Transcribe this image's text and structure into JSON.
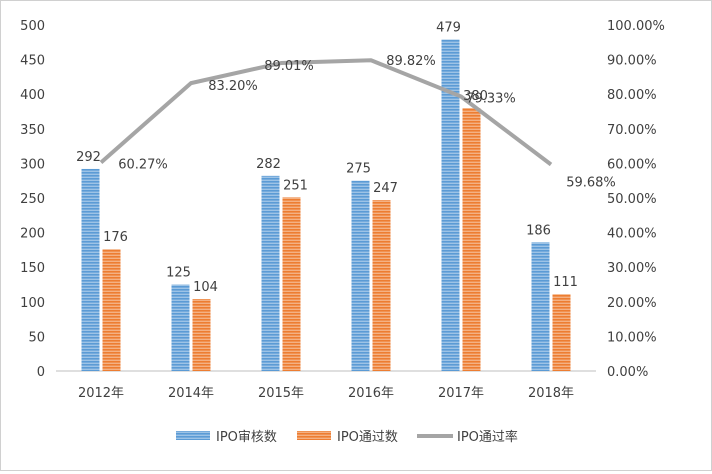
{
  "chart_data": {
    "type": "bar",
    "categories": [
      "2012年",
      "2014年",
      "2015年",
      "2016年",
      "2017年",
      "2018年"
    ],
    "series": [
      {
        "name": "IPO审核数",
        "kind": "bar",
        "axis": "left",
        "color": "#5b9bd5",
        "values": [
          292,
          125,
          282,
          275,
          479,
          186
        ]
      },
      {
        "name": "IPO通过数",
        "kind": "bar",
        "axis": "left",
        "color": "#ed7d31",
        "values": [
          176,
          104,
          251,
          247,
          380,
          111
        ]
      },
      {
        "name": "IPO通过率",
        "kind": "line",
        "axis": "right",
        "color": "#a5a5a5",
        "values": [
          60.27,
          83.2,
          89.01,
          89.82,
          79.33,
          59.68
        ],
        "labels": [
          "60.27%",
          "83.20%",
          "89.01%",
          "89.82%",
          "79.33%",
          "59.68%"
        ]
      }
    ],
    "ylim": [
      0,
      500
    ],
    "yticks": [
      "0",
      "50",
      "100",
      "150",
      "200",
      "250",
      "300",
      "350",
      "400",
      "450",
      "500"
    ],
    "y2lim": [
      0,
      100
    ],
    "y2ticks": [
      "0.00%",
      "10.00%",
      "20.00%",
      "30.00%",
      "40.00%",
      "50.00%",
      "60.00%",
      "70.00%",
      "80.00%",
      "90.00%",
      "100.00%"
    ],
    "legend_position": "bottom",
    "grid": false
  }
}
